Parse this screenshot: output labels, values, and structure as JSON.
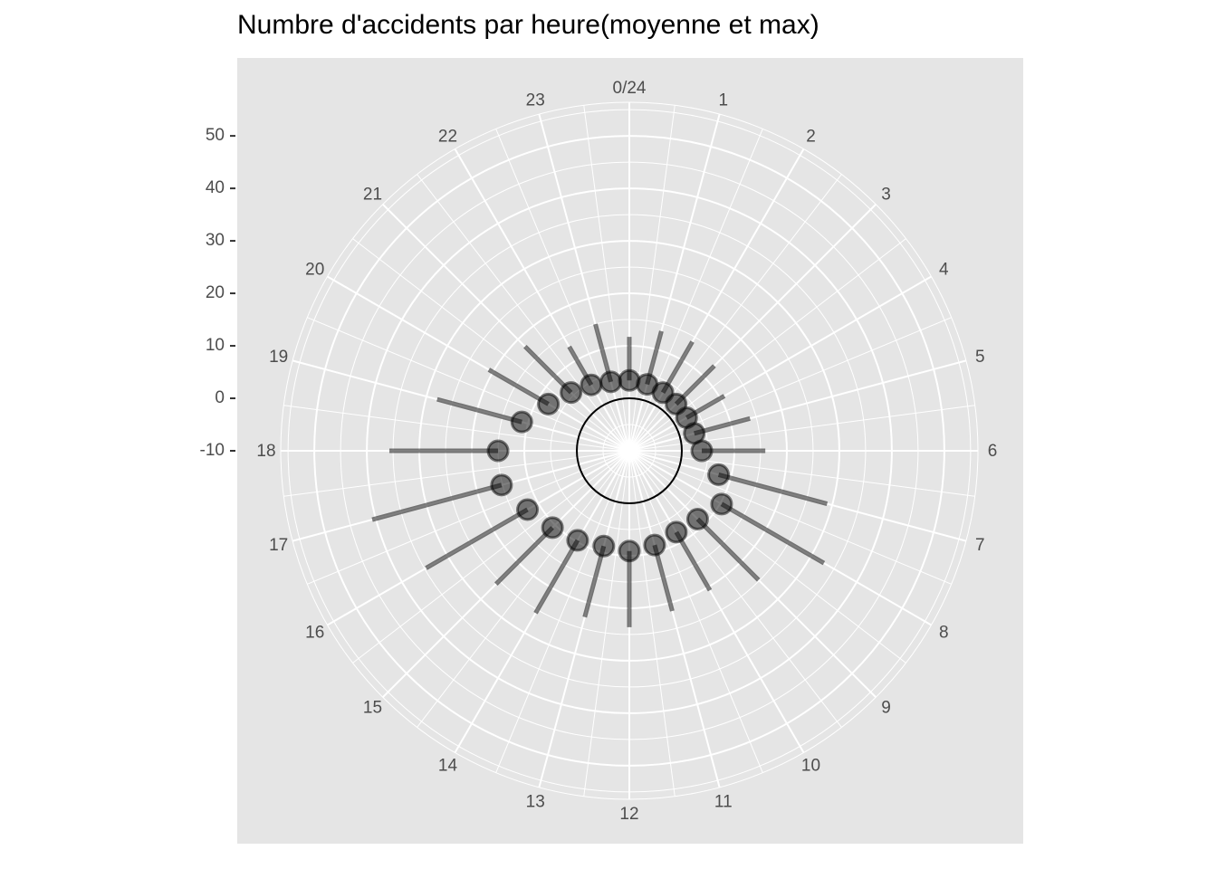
{
  "chart_data": {
    "type": "polar",
    "title": "Numbre d'accidents par heure(moyenne et max)",
    "categories": [
      "0/24",
      "1",
      "2",
      "3",
      "4",
      "5",
      "6",
      "7",
      "8",
      "9",
      "10",
      "11",
      "12",
      "13",
      "14",
      "15",
      "16",
      "17",
      "18",
      "19",
      "20",
      "21",
      "22",
      "23"
    ],
    "series": [
      {
        "mark": "point",
        "color": "#000000",
        "opacity": 0.5,
        "values": [
          3.4,
          3.1,
          2.8,
          2.6,
          2.6,
          2.8,
          3.8,
          7.6,
          10.3,
          8.4,
          7.9,
          8.6,
          9.1,
          8.8,
          9.7,
          10.7,
          12.4,
          15.2,
          15,
          11.2,
          7.8,
          5.7,
          4.5,
          3.6
        ]
      },
      {
        "mark": "segment",
        "color": "#000000",
        "opacity": 0.5,
        "values": [
          11.7,
          13.6,
          14,
          12.9,
          10.9,
          13.8,
          15.9,
          29,
          32.8,
          24.8,
          20.7,
          21.6,
          23.6,
          22.8,
          25.7,
          25.9,
          34.7,
          40.7,
          35.7,
          27.9,
          20.9,
          18.1,
          12.9,
          15
        ]
      }
    ],
    "reference_line": 0,
    "ylim": [
      -10,
      56.4
    ],
    "yticks": [
      -10,
      0,
      10,
      20,
      30,
      40,
      50
    ],
    "grid": true
  }
}
